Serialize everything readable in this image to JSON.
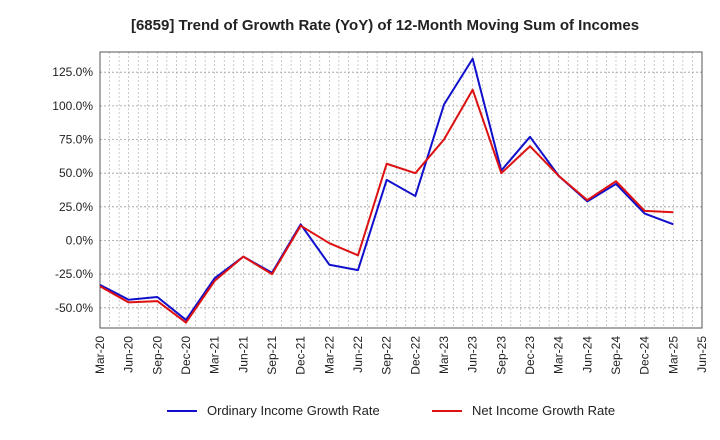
{
  "chart_data": {
    "type": "line",
    "title": "[6859]  Trend of Growth Rate (YoY) of 12-Month Moving Sum of Incomes",
    "xlabel": "",
    "ylabel": "",
    "x_ticks": [
      "Mar-20",
      "Jun-20",
      "Sep-20",
      "Dec-20",
      "Mar-21",
      "Jun-21",
      "Sep-21",
      "Dec-21",
      "Mar-22",
      "Jun-22",
      "Sep-22",
      "Dec-22",
      "Mar-23",
      "Jun-23",
      "Sep-23",
      "Dec-23",
      "Mar-24",
      "Jun-24",
      "Sep-24",
      "Dec-24",
      "Mar-25",
      "Jun-25"
    ],
    "y_ticks": [
      125,
      100,
      75,
      50,
      25,
      0,
      -25,
      -50
    ],
    "y_tick_labels": [
      "125.0%",
      "100.0%",
      "75.0%",
      "50.0%",
      "25.0%",
      "0.0%",
      "-25.0%",
      "-50.0%"
    ],
    "ylim": [
      -65,
      140
    ],
    "grid": true,
    "legend_position": "bottom",
    "x": [
      "Mar-20",
      "Jun-20",
      "Sep-20",
      "Dec-20",
      "Mar-21",
      "Jun-21",
      "Sep-21",
      "Dec-21",
      "Mar-22",
      "Jun-22",
      "Sep-22",
      "Dec-22",
      "Mar-23",
      "Jun-23",
      "Sep-23",
      "Dec-23",
      "Mar-24",
      "Jun-24",
      "Sep-24",
      "Dec-24",
      "Mar-25"
    ],
    "series": [
      {
        "name": "Ordinary Income Growth Rate",
        "color": "#1010cc",
        "values": [
          -33,
          -44,
          -42,
          -59,
          -28,
          -12,
          -24,
          12,
          -18,
          -22,
          45,
          33,
          101,
          135,
          52,
          77,
          48,
          29,
          42,
          20,
          12
        ]
      },
      {
        "name": "Net Income Growth Rate",
        "color": "#dd1111",
        "values": [
          -34,
          -46,
          -45,
          -61,
          -30,
          -12,
          -25,
          11,
          -2,
          -11,
          57,
          50,
          75,
          112,
          50,
          70,
          48,
          30,
          44,
          22,
          21
        ]
      }
    ]
  }
}
